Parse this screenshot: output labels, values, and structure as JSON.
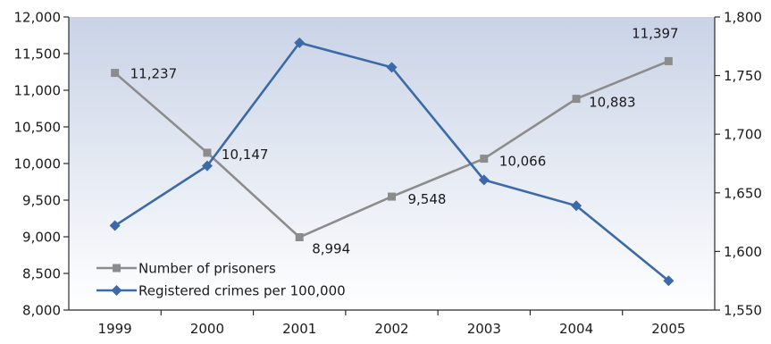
{
  "chart_data": {
    "type": "line",
    "categories": [
      "1999",
      "2000",
      "2001",
      "2002",
      "2003",
      "2004",
      "2005"
    ],
    "series": [
      {
        "name": "Number of prisoners",
        "axis": "left",
        "color": "#8c8c8c",
        "marker": "square",
        "values": [
          11237,
          10147,
          8994,
          9548,
          10066,
          10883,
          11397
        ],
        "labels": [
          "11,237",
          "10,147",
          "8,994",
          "9,548",
          "10,066",
          "10,883",
          "11,397"
        ]
      },
      {
        "name": "Registered crimes per 100,000",
        "axis": "right",
        "color": "#3c6aa8",
        "marker": "diamond",
        "values": [
          1622,
          1673,
          1778,
          1757,
          1661,
          1639,
          1575
        ]
      }
    ],
    "y_left": {
      "range": [
        8000,
        12000
      ],
      "ticks": [
        8000,
        8500,
        9000,
        9500,
        10000,
        10500,
        11000,
        11500,
        12000
      ],
      "tick_labels": [
        "8,000",
        "8,500",
        "9,000",
        "9,500",
        "10,000",
        "10,500",
        "11,000",
        "11,500",
        "12,000"
      ]
    },
    "y_right": {
      "range": [
        1550,
        1800
      ],
      "ticks": [
        1550,
        1600,
        1650,
        1700,
        1750,
        1800
      ],
      "tick_labels": [
        "1,550",
        "1,600",
        "1,650",
        "1,700",
        "1,750",
        "1,800"
      ]
    },
    "background_gradient": [
      "#c9d3e6",
      "#ffffff"
    ],
    "grid": false,
    "legend": "bottom-left",
    "title": "",
    "xlabel": "",
    "ylabel": ""
  }
}
